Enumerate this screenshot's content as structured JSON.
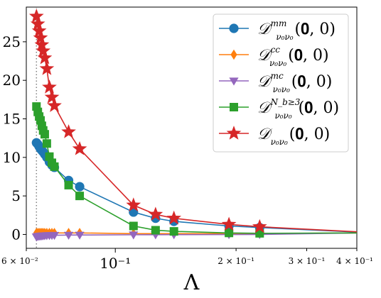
{
  "chart_data": {
    "type": "line",
    "x_scale": "log",
    "xlim": [
      0.06,
      0.4
    ],
    "ylim": [
      -1.8,
      29.5
    ],
    "xlabel": "Λ",
    "ylabel": "",
    "x_ticks": [
      {
        "value": 0.06,
        "label": "6 × 10⁻²",
        "size": "small"
      },
      {
        "value": 0.1,
        "label": "10⁻¹",
        "size": "large"
      },
      {
        "value": 0.2,
        "label": "2 × 10⁻¹",
        "size": "small"
      },
      {
        "value": 0.3,
        "label": "3 × 10⁻¹",
        "size": "small"
      },
      {
        "value": 0.4,
        "label": "4 × 10⁻¹",
        "size": "small"
      }
    ],
    "y_ticks": [
      0,
      5,
      10,
      15,
      20,
      25
    ],
    "vline": {
      "x": 0.0636,
      "style": "dotted"
    },
    "legend_position": "top-right",
    "series": [
      {
        "name": "𝒟",
        "name_sub": "ν₀ν₀",
        "name_sup": "mm",
        "name_arg": "(𝟎, 0)",
        "color": "#1f77b4",
        "marker": "circle",
        "x": [
          0.0636,
          0.0641,
          0.0646,
          0.0651,
          0.0656,
          0.0661,
          0.0667,
          0.0675,
          0.0685,
          0.0695,
          0.0705,
          0.0765,
          0.0815,
          0.111,
          0.126,
          0.14,
          0.192,
          0.229
        ],
        "y": [
          11.9,
          11.7,
          11.4,
          11.1,
          10.9,
          10.7,
          10.4,
          10.0,
          9.4,
          9.0,
          8.7,
          7.0,
          6.2,
          2.9,
          2.1,
          1.7,
          1.1,
          0.9
        ]
      },
      {
        "name": "𝒟",
        "name_sub": "ν₀ν₀",
        "name_sup": "cc",
        "name_arg": "(𝟎, 0)",
        "color": "#ff7f0e",
        "marker": "diamond",
        "x": [
          0.0636,
          0.0641,
          0.0646,
          0.0651,
          0.0656,
          0.0661,
          0.0667,
          0.0675,
          0.0685,
          0.0695,
          0.0705,
          0.0765,
          0.0815,
          0.111,
          0.126,
          0.14,
          0.192,
          0.229
        ],
        "y": [
          0.2,
          0.2,
          0.2,
          0.2,
          0.2,
          0.2,
          0.2,
          0.2,
          0.2,
          0.2,
          0.2,
          0.2,
          0.2,
          0.1,
          0.1,
          0.1,
          0.1,
          0.1
        ]
      },
      {
        "name": "𝒟",
        "name_sub": "ν₀ν₀",
        "name_sup": "mc",
        "name_arg": "(𝟎, 0)",
        "color": "#9467bd",
        "marker": "triangle-down",
        "x": [
          0.0636,
          0.0641,
          0.0646,
          0.0651,
          0.0656,
          0.0661,
          0.0667,
          0.0675,
          0.0685,
          0.0695,
          0.0705,
          0.0765,
          0.0815,
          0.111,
          0.126,
          0.14,
          0.192,
          0.229
        ],
        "y": [
          -0.3,
          -0.25,
          -0.22,
          -0.2,
          -0.18,
          -0.16,
          -0.15,
          -0.13,
          -0.12,
          -0.11,
          -0.1,
          -0.08,
          -0.07,
          -0.04,
          -0.03,
          -0.02,
          -0.01,
          0.0
        ]
      },
      {
        "name": "𝒟",
        "name_sub": "ν₀ν₀",
        "name_sup": "N_b≥3",
        "name_arg": "(𝟎, 0)",
        "color": "#2ca02c",
        "marker": "square",
        "x": [
          0.0636,
          0.0641,
          0.0646,
          0.0651,
          0.0656,
          0.0661,
          0.0667,
          0.0675,
          0.0685,
          0.0695,
          0.0705,
          0.0765,
          0.0815,
          0.111,
          0.126,
          0.14,
          0.192,
          0.229
        ],
        "y": [
          16.6,
          15.9,
          15.3,
          14.8,
          14.1,
          13.5,
          13.0,
          11.8,
          10.1,
          9.3,
          8.8,
          6.4,
          5.0,
          1.1,
          0.55,
          0.4,
          0.2,
          0.15
        ]
      },
      {
        "name": "𝒟",
        "name_sub": "ν₀ν₀",
        "name_sup": "",
        "name_arg": "(𝟎, 0)",
        "color": "#d62728",
        "marker": "star",
        "x": [
          0.0636,
          0.0641,
          0.0646,
          0.0651,
          0.0656,
          0.0661,
          0.0667,
          0.0675,
          0.0685,
          0.0695,
          0.0705,
          0.0765,
          0.0815,
          0.111,
          0.126,
          0.14,
          0.192,
          0.229
        ],
        "y": [
          28.3,
          27.3,
          26.4,
          25.5,
          24.6,
          23.8,
          22.9,
          21.5,
          19.1,
          17.8,
          16.7,
          13.3,
          11.1,
          3.8,
          2.6,
          2.1,
          1.3,
          1.0
        ]
      }
    ]
  }
}
